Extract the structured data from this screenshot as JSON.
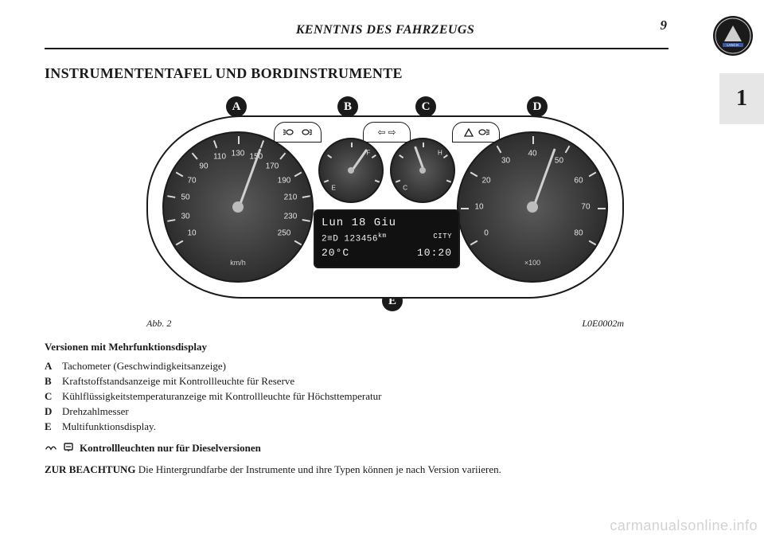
{
  "page": {
    "header": "KENNTNIS DES FAHRZEUGS",
    "number": "9",
    "side_tab": "1",
    "section_title": "INSTRUMENTENTAFEL UND BORDINSTRUMENTE",
    "fig_label": "Abb. 2",
    "fig_code": "L0E0002m",
    "watermark": "carmanualsonline.info"
  },
  "callouts": {
    "A": "A",
    "B": "B",
    "C": "C",
    "D": "D",
    "E": "E"
  },
  "cluster": {
    "speedo": {
      "ticks": [
        10,
        30,
        50,
        70,
        90,
        110,
        130,
        150,
        170,
        190,
        210,
        230,
        250
      ],
      "unit": "km/h",
      "needle_deg": 200
    },
    "tacho": {
      "ticks": [
        0,
        10,
        20,
        30,
        40,
        50,
        60,
        70,
        80
      ],
      "unit": "×100",
      "needle_deg": 200
    },
    "fuel": {
      "low": "E",
      "high": "F",
      "needle_deg": 215
    },
    "temp": {
      "low": "C",
      "high": "H",
      "needle_deg": 160
    },
    "wedges": {
      "w1": "",
      "w2": "⇦ ⇨",
      "w3": ""
    },
    "display": {
      "line1": "Lun 18 Giu",
      "line2_left": "2≡D  123456",
      "line2_km": "km",
      "line2_right": "CITY",
      "line3_left": "20°C",
      "line3_right": "10:20"
    }
  },
  "body": {
    "variant_title": "Versionen mit Mehrfunktionsdisplay",
    "legend": [
      {
        "letter": "A",
        "text": "Tachometer (Geschwindigkeitsanzeige)"
      },
      {
        "letter": "B",
        "text": "Kraftstoffstandsanzeige mit Kontrollleuchte für Reserve"
      },
      {
        "letter": "C",
        "text": "Kühlflüssigkeitstemperaturanzeige mit Kontrollleuchte für Höchsttemperatur"
      },
      {
        "letter": "D",
        "text": "Drehzahlmesser"
      },
      {
        "letter": "E",
        "text": "Multifunktionsdisplay."
      }
    ],
    "icon_note_text": "Kontrollleuchten nur für Dieselversionen",
    "warn_label": "ZUR BEACHTUNG",
    "warn_text": " Die Hintergrundfarbe der Instrumente und ihre Typen können je nach Version variieren."
  },
  "style": {
    "text_color": "#1a1a1a",
    "gauge_face": "#2e2e2e",
    "needle_color": "#d0d0d0",
    "display_bg": "#111111",
    "display_fg": "#f2f2f2"
  }
}
